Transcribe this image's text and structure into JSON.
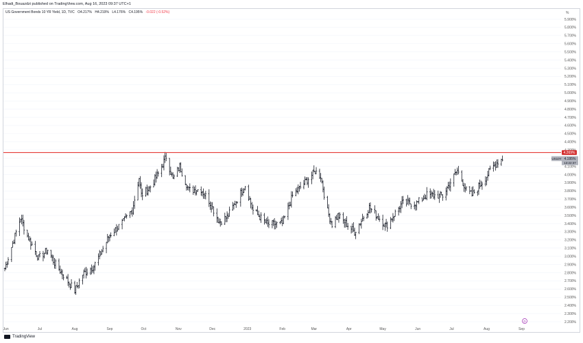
{
  "publisher": "Elhadi_Bouazdzi published on TradingView.com, Aug 16, 2023 09:37 UTC+1",
  "legend": {
    "symbol": "US Government Bonds 10 YR Yield, 1D, TVC",
    "open": "O4.217%",
    "high": "H4.219%",
    "low": "L4.176%",
    "close": "C4.195%",
    "change": "-0.022 (-0.52%)"
  },
  "axis_unit": "%",
  "brand": "TradingView",
  "price_tag": {
    "symbol": "US10Y",
    "value": "4.195%",
    "time": "13:22:37"
  },
  "line_tag": "4.269%",
  "event_marker": "D",
  "colors": {
    "line": "#e53935",
    "bars": "#131722",
    "grid": "#f0f3fa",
    "tag": "#d32f2f",
    "price_tag_bg": "#b2b5be"
  },
  "chart_data": {
    "type": "ohlc",
    "x_ticks": [
      "Jun",
      "Jul",
      "Aug",
      "Sep",
      "Oct",
      "Nov",
      "Dec",
      "2023",
      "Feb",
      "Mar",
      "Apr",
      "May",
      "Jun",
      "Jul",
      "Aug",
      "Sep"
    ],
    "y_ticks": [
      "5.900%",
      "5.800%",
      "5.700%",
      "5.600%",
      "5.500%",
      "5.400%",
      "5.300%",
      "5.200%",
      "5.100%",
      "5.000%",
      "4.900%",
      "4.800%",
      "4.700%",
      "4.600%",
      "4.500%",
      "4.400%",
      "4.300%",
      "4.200%",
      "4.100%",
      "4.000%",
      "3.900%",
      "3.800%",
      "3.700%",
      "3.600%",
      "3.500%",
      "3.400%",
      "3.300%",
      "3.200%",
      "3.100%",
      "3.000%",
      "2.900%",
      "2.800%",
      "2.700%",
      "2.600%",
      "2.500%",
      "2.400%",
      "2.300%",
      "2.200%"
    ],
    "ylim": [
      2.15,
      5.95
    ],
    "horizontal_line": 4.269,
    "last_close": 4.195,
    "anchors": [
      [
        "2022-05-31",
        2.85
      ],
      [
        "2022-06-14",
        3.47
      ],
      [
        "2022-06-20",
        3.25
      ],
      [
        "2022-06-30",
        2.98
      ],
      [
        "2022-07-08",
        3.08
      ],
      [
        "2022-07-14",
        2.92
      ],
      [
        "2022-08-01",
        2.58
      ],
      [
        "2022-08-08",
        2.78
      ],
      [
        "2022-08-18",
        2.88
      ],
      [
        "2022-09-01",
        3.26
      ],
      [
        "2022-09-13",
        3.42
      ],
      [
        "2022-09-21",
        3.57
      ],
      [
        "2022-09-27",
        3.96
      ],
      [
        "2022-09-29",
        3.75
      ],
      [
        "2022-10-06",
        3.83
      ],
      [
        "2022-10-14",
        4.01
      ],
      [
        "2022-10-21",
        4.22
      ],
      [
        "2022-10-27",
        3.94
      ],
      [
        "2022-11-02",
        4.1
      ],
      [
        "2022-11-10",
        3.81
      ],
      [
        "2022-11-21",
        3.82
      ],
      [
        "2022-11-28",
        3.68
      ],
      [
        "2022-12-07",
        3.42
      ],
      [
        "2022-12-14",
        3.48
      ],
      [
        "2022-12-30",
        3.87
      ],
      [
        "2023-01-06",
        3.56
      ],
      [
        "2023-01-19",
        3.39
      ],
      [
        "2023-02-01",
        3.4
      ],
      [
        "2023-02-10",
        3.74
      ],
      [
        "2023-02-22",
        3.92
      ],
      [
        "2023-03-02",
        4.04
      ],
      [
        "2023-03-07",
        3.98
      ],
      [
        "2023-03-13",
        3.55
      ],
      [
        "2023-03-17",
        3.39
      ],
      [
        "2023-03-22",
        3.5
      ],
      [
        "2023-04-06",
        3.3
      ],
      [
        "2023-04-19",
        3.6
      ],
      [
        "2023-05-04",
        3.37
      ],
      [
        "2023-05-18",
        3.65
      ],
      [
        "2023-05-31",
        3.65
      ],
      [
        "2023-06-09",
        3.75
      ],
      [
        "2023-06-23",
        3.74
      ],
      [
        "2023-07-06",
        4.05
      ],
      [
        "2023-07-14",
        3.81
      ],
      [
        "2023-07-19",
        3.75
      ],
      [
        "2023-07-31",
        3.96
      ],
      [
        "2023-08-04",
        4.05
      ],
      [
        "2023-08-11",
        4.16
      ],
      [
        "2023-08-15",
        4.195
      ]
    ]
  }
}
